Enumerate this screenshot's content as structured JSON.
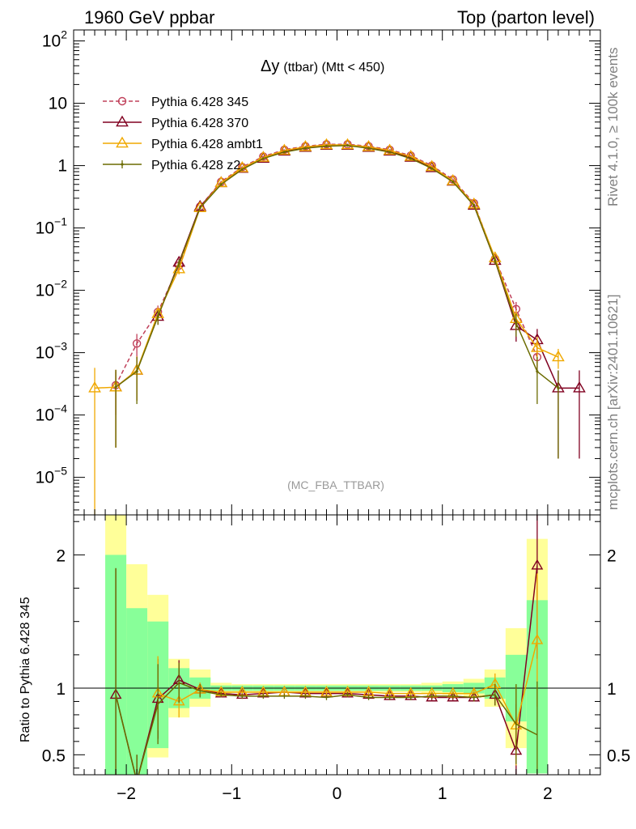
{
  "header": {
    "left": "1960 GeV ppbar",
    "right": "Top (parton level)"
  },
  "side_labels": {
    "rivet": "Rivet 4.1.0, ≥ 100k events",
    "mcplots": "mcplots.cern.ch [arXiv:2401.10621]"
  },
  "chart_data": {
    "type": "line",
    "title_main": "Δy",
    "title_sub": "(ttbar) (Mtt < 450)",
    "analysis_label": "(MC_FBA_TTBAR)",
    "xlabel": "",
    "ylabel_ratio": "Ratio to Pythia 6.428 345",
    "xlim": [
      -2.5,
      2.5
    ],
    "ylim_main": [
      2.5e-06,
      150
    ],
    "ylim_ratio": [
      0.35,
      2.3
    ],
    "x_ticks": [
      -2,
      -1,
      0,
      1,
      2
    ],
    "x_tick_labels": [
      "−2",
      "−1",
      "0",
      "1",
      "2"
    ],
    "y_ticks_main": [
      {
        "v": 100,
        "base": "10",
        "exp": "2"
      },
      {
        "v": 10,
        "base": "10",
        "exp": ""
      },
      {
        "v": 1,
        "base": "1",
        "exp": ""
      },
      {
        "v": 0.1,
        "base": "10",
        "exp": "−1"
      },
      {
        "v": 0.01,
        "base": "10",
        "exp": "−2"
      },
      {
        "v": 0.001,
        "base": "10",
        "exp": "−3"
      },
      {
        "v": 0.0001,
        "base": "10",
        "exp": "−4"
      },
      {
        "v": 1e-05,
        "base": "10",
        "exp": "−5"
      }
    ],
    "y_ticks_ratio": [
      {
        "v": 0.5,
        "label": "0.5"
      },
      {
        "v": 1,
        "label": "1"
      },
      {
        "v": 2,
        "label": "2"
      }
    ],
    "ratio_bands": {
      "bin_lows": [
        -2.2,
        -2.0,
        -1.8,
        -1.6,
        -1.4,
        -1.2,
        -1.0,
        -0.8,
        -0.6,
        -0.4,
        -0.2,
        0.0,
        0.2,
        0.4,
        0.6,
        0.8,
        1.0,
        1.2,
        1.4,
        1.6,
        1.8
      ],
      "bin_width": 0.2,
      "green": [
        [
          0.3,
          2.0
        ],
        [
          0.3,
          1.6
        ],
        [
          0.55,
          1.5
        ],
        [
          0.85,
          1.15
        ],
        [
          0.92,
          1.08
        ],
        [
          0.98,
          1.02
        ],
        [
          0.98,
          1.02
        ],
        [
          0.98,
          1.02
        ],
        [
          0.98,
          1.02
        ],
        [
          0.98,
          1.02
        ],
        [
          0.98,
          1.02
        ],
        [
          0.98,
          1.02
        ],
        [
          0.98,
          1.02
        ],
        [
          0.98,
          1.02
        ],
        [
          0.98,
          1.02
        ],
        [
          0.98,
          1.02
        ],
        [
          0.97,
          1.03
        ],
        [
          0.96,
          1.04
        ],
        [
          0.92,
          1.08
        ],
        [
          0.75,
          1.25
        ],
        [
          0.36,
          1.66
        ]
      ],
      "yellow": [
        [
          0.3,
          2.35
        ],
        [
          0.3,
          1.93
        ],
        [
          0.48,
          1.7
        ],
        [
          0.78,
          1.22
        ],
        [
          0.86,
          1.14
        ],
        [
          0.96,
          1.04
        ],
        [
          0.97,
          1.03
        ],
        [
          0.97,
          1.03
        ],
        [
          0.97,
          1.03
        ],
        [
          0.97,
          1.03
        ],
        [
          0.97,
          1.03
        ],
        [
          0.97,
          1.03
        ],
        [
          0.97,
          1.03
        ],
        [
          0.97,
          1.03
        ],
        [
          0.97,
          1.03
        ],
        [
          0.96,
          1.04
        ],
        [
          0.95,
          1.05
        ],
        [
          0.93,
          1.07
        ],
        [
          0.86,
          1.14
        ],
        [
          0.55,
          1.45
        ],
        [
          0.36,
          2.12
        ]
      ]
    },
    "series": [
      {
        "name": "Pythia 6.428 345",
        "color": "#c0405a",
        "marker": "circle",
        "dashed": true,
        "x": [
          -2.1,
          -1.9,
          -1.7,
          -1.5,
          -1.3,
          -1.1,
          -0.9,
          -0.7,
          -0.5,
          -0.3,
          -0.1,
          0.1,
          0.3,
          0.5,
          0.7,
          0.9,
          1.1,
          1.3,
          1.5,
          1.7,
          1.9
        ],
        "y": [
          0.0003,
          0.0014,
          0.0045,
          0.025,
          0.22,
          0.55,
          0.95,
          1.4,
          1.8,
          2.05,
          2.2,
          2.2,
          2.05,
          1.8,
          1.45,
          1.0,
          0.6,
          0.25,
          0.032,
          0.005,
          0.00085
        ],
        "err": [
          0.0002,
          0.0006,
          0.0012,
          0.004,
          0.01,
          0.02,
          0.03,
          0.03,
          0.03,
          0.03,
          0.03,
          0.03,
          0.03,
          0.03,
          0.03,
          0.03,
          0.02,
          0.01,
          0.004,
          0.0015,
          0.0004
        ]
      },
      {
        "name": "Pythia 6.428 370",
        "color": "#800020",
        "marker": "triangle",
        "dashed": false,
        "x": [
          -2.1,
          -1.9,
          -1.7,
          -1.5,
          -1.3,
          -1.1,
          -0.9,
          -0.7,
          -0.5,
          -0.3,
          -0.1,
          0.1,
          0.3,
          0.5,
          0.7,
          0.9,
          1.1,
          1.3,
          1.5,
          1.7,
          1.9,
          2.1,
          2.3
        ],
        "y": [
          0.00028,
          0.00052,
          0.0038,
          0.028,
          0.22,
          0.53,
          0.9,
          1.3,
          1.7,
          1.95,
          2.1,
          2.1,
          1.95,
          1.7,
          1.35,
          0.92,
          0.56,
          0.23,
          0.03,
          0.0027,
          0.0016,
          0.00027,
          0.00027
        ],
        "err": [
          0.00025,
          0.00035,
          0.001,
          0.004,
          0.01,
          0.02,
          0.03,
          0.03,
          0.03,
          0.03,
          0.03,
          0.03,
          0.03,
          0.03,
          0.03,
          0.03,
          0.02,
          0.01,
          0.004,
          0.0012,
          0.0008,
          0.00025,
          0.00025
        ],
        "ratio_x": [
          -2.1,
          -1.9,
          -1.7,
          -1.5,
          -1.3,
          -1.1,
          -0.9,
          -0.7,
          -0.5,
          -0.3,
          -0.1,
          0.1,
          0.3,
          0.5,
          0.7,
          0.9,
          1.1,
          1.3,
          1.5,
          1.7,
          1.9
        ],
        "ratio": [
          0.95,
          0.3,
          0.92,
          1.06,
          0.99,
          0.96,
          0.95,
          0.96,
          0.97,
          0.96,
          0.96,
          0.96,
          0.95,
          0.94,
          0.94,
          0.93,
          0.93,
          0.93,
          0.95,
          0.53,
          1.92
        ],
        "ratio_err": [
          0.95,
          0.2,
          0.3,
          0.15,
          0.05,
          0.02,
          0.02,
          0.02,
          0.02,
          0.02,
          0.02,
          0.02,
          0.02,
          0.02,
          0.02,
          0.02,
          0.02,
          0.03,
          0.08,
          0.35,
          0.7
        ]
      },
      {
        "name": "Pythia 6.428 ambt1",
        "color": "#f0a800",
        "marker": "triangle",
        "dashed": false,
        "x": [
          -2.3,
          -2.1,
          -1.9,
          -1.7,
          -1.5,
          -1.3,
          -1.1,
          -0.9,
          -0.7,
          -0.5,
          -0.3,
          -0.1,
          0.1,
          0.3,
          0.5,
          0.7,
          0.9,
          1.1,
          1.3,
          1.5,
          1.7,
          1.9,
          2.1
        ],
        "y": [
          0.00027,
          0.00028,
          0.00052,
          0.0042,
          0.022,
          0.21,
          0.53,
          0.92,
          1.35,
          1.75,
          2.0,
          2.15,
          2.15,
          2.0,
          1.75,
          1.4,
          0.96,
          0.57,
          0.24,
          0.033,
          0.0035,
          0.0012,
          0.00085
        ],
        "err": [
          0.0003,
          0.00025,
          0.00035,
          0.001,
          0.004,
          0.01,
          0.02,
          0.03,
          0.03,
          0.03,
          0.03,
          0.03,
          0.03,
          0.03,
          0.03,
          0.03,
          0.03,
          0.02,
          0.01,
          0.004,
          0.0012,
          0.0006,
          0.0003
        ],
        "ratio_x": [
          -1.7,
          -1.5,
          -1.3,
          -1.1,
          -0.9,
          -0.7,
          -0.5,
          -0.3,
          -0.1,
          0.1,
          0.3,
          0.5,
          0.7,
          0.9,
          1.1,
          1.3,
          1.5,
          1.7,
          1.9
        ],
        "ratio": [
          0.96,
          0.9,
          0.99,
          0.97,
          0.97,
          0.97,
          0.97,
          0.97,
          0.97,
          0.97,
          0.97,
          0.96,
          0.96,
          0.96,
          0.96,
          0.96,
          1.03,
          0.72,
          1.36
        ],
        "ratio_err": [
          0.28,
          0.12,
          0.05,
          0.02,
          0.02,
          0.02,
          0.02,
          0.02,
          0.02,
          0.02,
          0.02,
          0.02,
          0.02,
          0.02,
          0.02,
          0.03,
          0.08,
          0.3,
          0.5
        ]
      },
      {
        "name": "Pythia 6.428 z2",
        "color": "#6b6b00",
        "marker": "dot",
        "dashed": false,
        "x": [
          -2.1,
          -1.9,
          -1.7,
          -1.5,
          -1.3,
          -1.1,
          -0.9,
          -0.7,
          -0.5,
          -0.3,
          -0.1,
          0.1,
          0.3,
          0.5,
          0.7,
          0.9,
          1.1,
          1.3,
          1.5,
          1.7,
          1.9,
          2.1
        ],
        "y": [
          0.00028,
          0.0005,
          0.0038,
          0.027,
          0.21,
          0.5,
          0.87,
          1.3,
          1.65,
          1.9,
          2.05,
          2.1,
          1.9,
          1.65,
          1.3,
          0.9,
          0.55,
          0.23,
          0.03,
          0.003,
          0.0005,
          0.00027
        ],
        "err": [
          0.00025,
          0.00035,
          0.001,
          0.004,
          0.01,
          0.02,
          0.03,
          0.03,
          0.03,
          0.03,
          0.03,
          0.03,
          0.03,
          0.03,
          0.03,
          0.03,
          0.02,
          0.01,
          0.004,
          0.0012,
          0.00035,
          0.00025
        ],
        "ratio_x": [
          -2.1,
          -1.9,
          -1.7,
          -1.5,
          -1.3,
          -1.1,
          -0.9,
          -0.7,
          -0.5,
          -0.3,
          -0.1,
          0.1,
          0.3,
          0.5,
          0.7,
          0.9,
          1.1,
          1.3,
          1.5,
          1.7,
          1.9
        ],
        "ratio": [
          0.95,
          0.3,
          0.88,
          1.04,
          0.98,
          0.95,
          0.94,
          0.94,
          0.94,
          0.94,
          0.93,
          0.95,
          0.93,
          0.93,
          0.93,
          0.94,
          0.94,
          0.93,
          0.95,
          0.73,
          0.65
        ],
        "ratio_err": [
          0.95,
          0.2,
          0.3,
          0.15,
          0.05,
          0.02,
          0.02,
          0.02,
          0.02,
          0.02,
          0.02,
          0.02,
          0.02,
          0.02,
          0.02,
          0.02,
          0.02,
          0.03,
          0.08,
          0.3,
          0.4
        ]
      }
    ]
  }
}
